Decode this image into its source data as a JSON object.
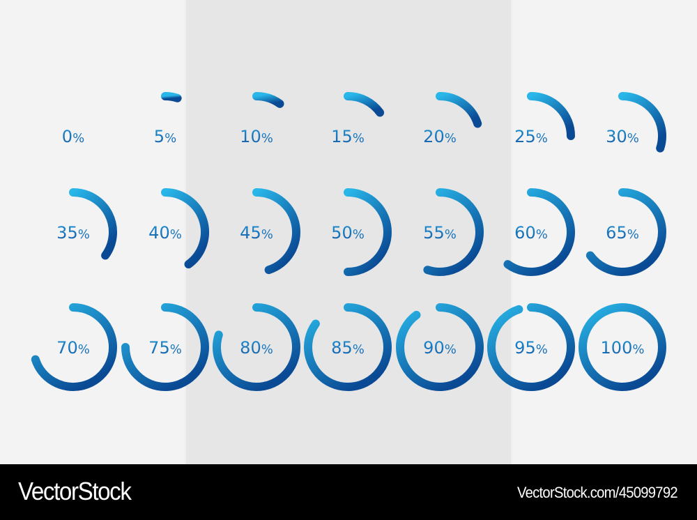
{
  "chart_data": {
    "type": "progress-ring-set",
    "title": "",
    "layout": {
      "rows": 3,
      "columns": 7,
      "start_angle": "top (12 o'clock)",
      "direction": "clockwise"
    },
    "values": [
      0,
      5,
      10,
      15,
      20,
      25,
      30,
      35,
      40,
      45,
      50,
      55,
      60,
      65,
      70,
      75,
      80,
      85,
      90,
      95,
      100
    ],
    "labels": [
      "0%",
      "5%",
      "10%",
      "15%",
      "20%",
      "25%",
      "30%",
      "35%",
      "40%",
      "45%",
      "50%",
      "55%",
      "60%",
      "65%",
      "70%",
      "75%",
      "80%",
      "85%",
      "90%",
      "95%",
      "100%"
    ],
    "gradient": {
      "start": "#29b6e8",
      "end": "#0a4a94"
    }
  },
  "colors": {
    "background": "#f3f3f3",
    "center_panel": "#e6e6e6",
    "label": "#1a72b8",
    "footer_bg": "#000000",
    "footer_text": "#ffffff"
  },
  "footer": {
    "brand": "VectorStock",
    "url": "VectorStock.com/45099792"
  }
}
